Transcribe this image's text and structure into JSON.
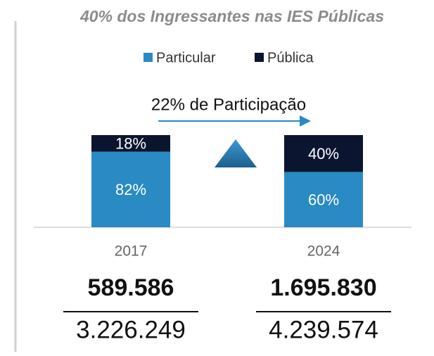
{
  "chart_data": {
    "type": "stacked_bar",
    "title": "40% dos Ingressantes nas IES Públicas",
    "annotation": "22% de Participação",
    "categories": [
      "2017",
      "2024"
    ],
    "series": [
      {
        "name": "Particular",
        "color": "#2a8ac4",
        "values": [
          82,
          60
        ],
        "value_labels": [
          "82%",
          "60%"
        ]
      },
      {
        "name": "Pública",
        "color": "#0b1530",
        "values": [
          18,
          40
        ],
        "value_labels": [
          "18%",
          "40%"
        ]
      }
    ],
    "ylim": [
      0,
      100
    ],
    "totals": [
      {
        "numerator": "589.586",
        "denominator": "3.226.249"
      },
      {
        "numerator": "1.695.830",
        "denominator": "4.239.574"
      }
    ]
  }
}
